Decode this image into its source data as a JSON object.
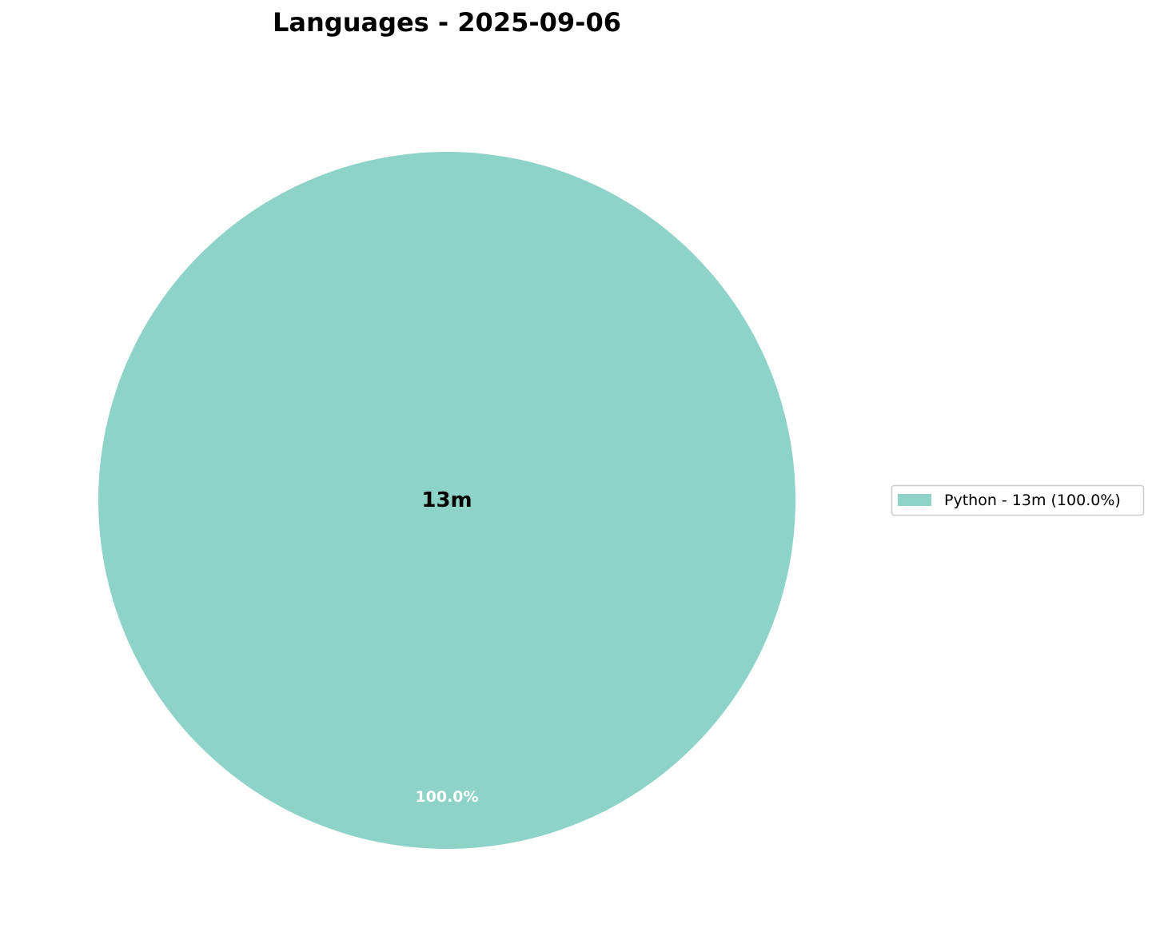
{
  "chart_data": {
    "type": "pie",
    "title": "Languages - 2025-09-06",
    "center_label": "13m",
    "slices": [
      {
        "label": "Python",
        "value_minutes": 13,
        "value_text": "13m",
        "percent": 100.0,
        "percent_label": "100.0%",
        "legend_label": "Python - 13m (100.0%)",
        "color": "#8ed3c7"
      }
    ],
    "legend_placement": "right",
    "grid": false
  }
}
